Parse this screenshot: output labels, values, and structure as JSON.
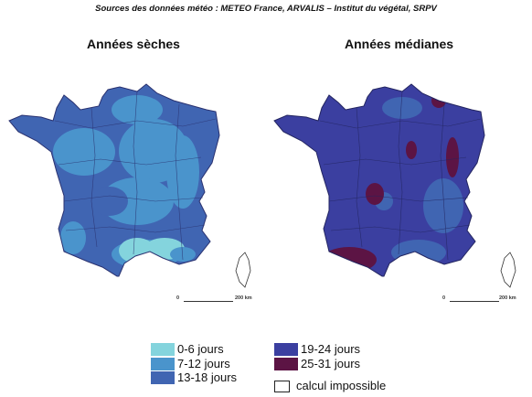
{
  "source": "Sources des données météo : METEO France, ARVALIS – Institut du végétal, SRPV",
  "maps": [
    {
      "title": "Années sèches"
    },
    {
      "title": "Années médianes"
    }
  ],
  "scale": {
    "zero": "0",
    "distance": "200 km"
  },
  "legend": [
    {
      "label": "0-6 jours",
      "color": "#84d4dd"
    },
    {
      "label": "7-12 jours",
      "color": "#4a94cc"
    },
    {
      "label": "13-18 jours",
      "color": "#4065b2"
    },
    {
      "label": "19-24 jours",
      "color": "#3b3fa0"
    },
    {
      "label": "25-31 jours",
      "color": "#5c1444"
    },
    {
      "label": "calcul impossible",
      "color": "#ffffff"
    }
  ]
}
